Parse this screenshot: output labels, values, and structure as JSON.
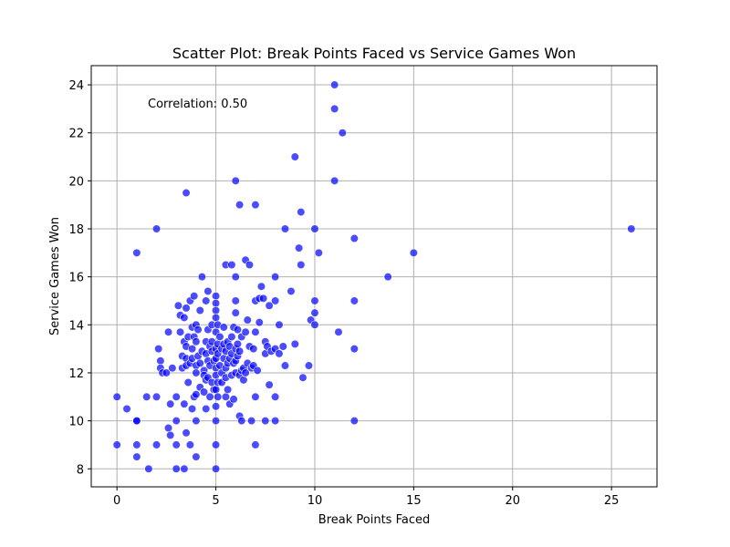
{
  "chart_data": {
    "type": "scatter",
    "title": "Scatter Plot: Break Points Faced vs Service Games Won",
    "xlabel": "Break Points Faced",
    "ylabel": "Service Games Won",
    "annotation": "Correlation: 0.50",
    "xlim": [
      -1.3,
      27.3
    ],
    "ylim": [
      7.25,
      24.8
    ],
    "xticks": [
      0,
      5,
      10,
      15,
      20,
      25
    ],
    "yticks": [
      8,
      10,
      12,
      14,
      16,
      18,
      20,
      22,
      24
    ],
    "grid": true,
    "marker_color": "#0000ff",
    "marker_edge_color": "#ffffff",
    "marker_alpha": 0.7,
    "points": [
      [
        0,
        11
      ],
      [
        0,
        9
      ],
      [
        0.5,
        10.5
      ],
      [
        1,
        17
      ],
      [
        1,
        10
      ],
      [
        1,
        9
      ],
      [
        1,
        8.5
      ],
      [
        1,
        10
      ],
      [
        1.5,
        11
      ],
      [
        1.6,
        8
      ],
      [
        2,
        11
      ],
      [
        2,
        9
      ],
      [
        2,
        18
      ],
      [
        2.1,
        13
      ],
      [
        2.2,
        12.5
      ],
      [
        2.2,
        12.2
      ],
      [
        2.3,
        12
      ],
      [
        2.5,
        12
      ],
      [
        2.6,
        13.7
      ],
      [
        2.6,
        9.7
      ],
      [
        2.7,
        10.7
      ],
      [
        2.7,
        9.4
      ],
      [
        2.8,
        12.2
      ],
      [
        3,
        11
      ],
      [
        3,
        10
      ],
      [
        3,
        9
      ],
      [
        3,
        8
      ],
      [
        3.1,
        14.8
      ],
      [
        3.2,
        14.4
      ],
      [
        3.2,
        13.7
      ],
      [
        3.3,
        12.7
      ],
      [
        3.3,
        12.2
      ],
      [
        3.4,
        14.3
      ],
      [
        3.4,
        13.3
      ],
      [
        3.4,
        10.7
      ],
      [
        3.4,
        8
      ],
      [
        3.5,
        19.5
      ],
      [
        3.5,
        14.7
      ],
      [
        3.5,
        13.1
      ],
      [
        3.5,
        12.6
      ],
      [
        3.5,
        12.3
      ],
      [
        3.5,
        9.5
      ],
      [
        3.6,
        13.5
      ],
      [
        3.6,
        11.6
      ],
      [
        3.7,
        15
      ],
      [
        3.7,
        12.4
      ],
      [
        3.7,
        9
      ],
      [
        3.8,
        13.9
      ],
      [
        3.8,
        13
      ],
      [
        3.8,
        12.6
      ],
      [
        3.8,
        10.5
      ],
      [
        3.9,
        15.2
      ],
      [
        3.9,
        13.5
      ],
      [
        3.9,
        11
      ],
      [
        4,
        14
      ],
      [
        4,
        13.3
      ],
      [
        4,
        12.3
      ],
      [
        4,
        12
      ],
      [
        4,
        11.1
      ],
      [
        4,
        10
      ],
      [
        4,
        8.5
      ],
      [
        4.1,
        13.8
      ],
      [
        4.1,
        12.7
      ],
      [
        4.2,
        14.6
      ],
      [
        4.2,
        12.4
      ],
      [
        4.2,
        11.4
      ],
      [
        4.3,
        16
      ],
      [
        4.3,
        12.9
      ],
      [
        4.4,
        12.1
      ],
      [
        4.4,
        11.2
      ],
      [
        4.4,
        11.9
      ],
      [
        4.5,
        15
      ],
      [
        4.5,
        13.3
      ],
      [
        4.5,
        12.8
      ],
      [
        4.5,
        11.7
      ],
      [
        4.5,
        10.5
      ],
      [
        4.6,
        15.4
      ],
      [
        4.6,
        13.8
      ],
      [
        4.6,
        12.5
      ],
      [
        4.6,
        11.8
      ],
      [
        4.7,
        13.1
      ],
      [
        4.7,
        12.3
      ],
      [
        4.7,
        11
      ],
      [
        4.8,
        14
      ],
      [
        4.8,
        13.3
      ],
      [
        4.8,
        12.9
      ],
      [
        4.8,
        11.6
      ],
      [
        4.9,
        12.5
      ],
      [
        4.9,
        11.3
      ],
      [
        5,
        15.2
      ],
      [
        5,
        14.9
      ],
      [
        5,
        14.6
      ],
      [
        5,
        14.3
      ],
      [
        5,
        13.7
      ],
      [
        5,
        13
      ],
      [
        5,
        12.6
      ],
      [
        5,
        12.2
      ],
      [
        5,
        11.9
      ],
      [
        5,
        11.3
      ],
      [
        5,
        10.6
      ],
      [
        5,
        10
      ],
      [
        5,
        9
      ],
      [
        5,
        8
      ],
      [
        5.1,
        14
      ],
      [
        5.1,
        13.2
      ],
      [
        5.1,
        12.8
      ],
      [
        5.1,
        11.6
      ],
      [
        5.1,
        11
      ],
      [
        5.2,
        13.5
      ],
      [
        5.2,
        12.3
      ],
      [
        5.3,
        13
      ],
      [
        5.3,
        12
      ],
      [
        5.3,
        11.6
      ],
      [
        5.4,
        13.9
      ],
      [
        5.4,
        13.2
      ],
      [
        5.4,
        12.6
      ],
      [
        5.5,
        16.5
      ],
      [
        5.5,
        12.9
      ],
      [
        5.5,
        12.2
      ],
      [
        5.5,
        11.8
      ],
      [
        5.5,
        11
      ],
      [
        5.6,
        13.3
      ],
      [
        5.6,
        12.4
      ],
      [
        5.6,
        11.3
      ],
      [
        5.7,
        13.1
      ],
      [
        5.7,
        12.6
      ],
      [
        5.7,
        10.7
      ],
      [
        5.8,
        16.5
      ],
      [
        5.8,
        13.5
      ],
      [
        5.8,
        12.8
      ],
      [
        5.8,
        11.9
      ],
      [
        5.9,
        13.9
      ],
      [
        5.9,
        12.4
      ],
      [
        5.9,
        10.9
      ],
      [
        6,
        20
      ],
      [
        6,
        16
      ],
      [
        6,
        15
      ],
      [
        6,
        14.5
      ],
      [
        6,
        13
      ],
      [
        6,
        12.5
      ],
      [
        6,
        12
      ],
      [
        6.1,
        13.8
      ],
      [
        6.1,
        13.2
      ],
      [
        6.1,
        12.7
      ],
      [
        6.2,
        19
      ],
      [
        6.2,
        12.9
      ],
      [
        6.2,
        11.9
      ],
      [
        6.2,
        10.2
      ],
      [
        6.3,
        13.5
      ],
      [
        6.3,
        12.1
      ],
      [
        6.3,
        10
      ],
      [
        6.4,
        12.2
      ],
      [
        6.4,
        11.7
      ],
      [
        6.5,
        16.7
      ],
      [
        6.5,
        13.7
      ],
      [
        6.5,
        12
      ],
      [
        6.6,
        14.2
      ],
      [
        6.6,
        12.4
      ],
      [
        6.7,
        16.5
      ],
      [
        6.7,
        13.1
      ],
      [
        6.8,
        12.2
      ],
      [
        6.8,
        10
      ],
      [
        6.9,
        13
      ],
      [
        6.9,
        12.3
      ],
      [
        7,
        19
      ],
      [
        7,
        15
      ],
      [
        7,
        13.7
      ],
      [
        7,
        11
      ],
      [
        7,
        9
      ],
      [
        7.1,
        12.1
      ],
      [
        7.2,
        15.1
      ],
      [
        7.2,
        14.1
      ],
      [
        7.3,
        15.6
      ],
      [
        7.4,
        15.1
      ],
      [
        7.5,
        13.3
      ],
      [
        7.5,
        12.8
      ],
      [
        7.5,
        10
      ],
      [
        7.6,
        13.1
      ],
      [
        7.7,
        14.8
      ],
      [
        7.7,
        11.5
      ],
      [
        7.8,
        12.9
      ],
      [
        8,
        16
      ],
      [
        8,
        15
      ],
      [
        8,
        13
      ],
      [
        8,
        11
      ],
      [
        8,
        10
      ],
      [
        8.2,
        14
      ],
      [
        8.2,
        12.8
      ],
      [
        8.4,
        13.1
      ],
      [
        8.5,
        18
      ],
      [
        8.5,
        12.3
      ],
      [
        8.8,
        15.4
      ],
      [
        9,
        21
      ],
      [
        9,
        13.2
      ],
      [
        9.2,
        17.2
      ],
      [
        9.3,
        18.7
      ],
      [
        9.3,
        16.5
      ],
      [
        9.4,
        11.8
      ],
      [
        9.7,
        12.3
      ],
      [
        9.8,
        14.2
      ],
      [
        10,
        18
      ],
      [
        10,
        15
      ],
      [
        10,
        14.5
      ],
      [
        10,
        14
      ],
      [
        10.2,
        17
      ],
      [
        11,
        24
      ],
      [
        11,
        23
      ],
      [
        11,
        20
      ],
      [
        11.2,
        13.7
      ],
      [
        11.4,
        22
      ],
      [
        12,
        17.6
      ],
      [
        12,
        15
      ],
      [
        12,
        13
      ],
      [
        12,
        10
      ],
      [
        13.7,
        16
      ],
      [
        15,
        17
      ],
      [
        26,
        18
      ]
    ]
  }
}
